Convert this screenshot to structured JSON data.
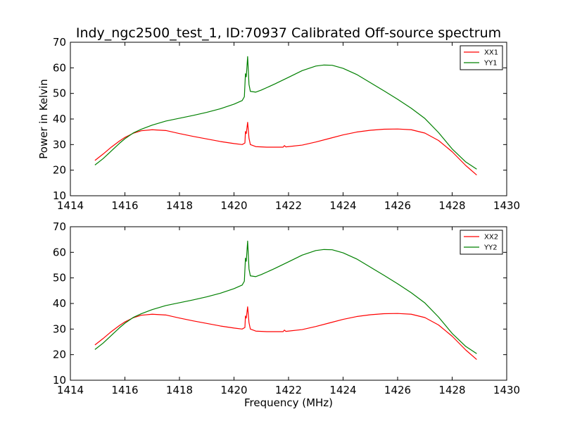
{
  "figure": {
    "title": "Indy_ngc2500_test_1, ID:70937 Calibrated Off-source spectrum"
  },
  "chart_data": [
    {
      "type": "line",
      "ylabel": "Power in Kelvin",
      "xlabel": "",
      "xlim": [
        1414,
        1430
      ],
      "ylim": [
        10,
        70
      ],
      "xticks": [
        "1414",
        "1416",
        "1418",
        "1420",
        "1422",
        "1424",
        "1426",
        "1428",
        "1430"
      ],
      "yticks": [
        "10",
        "20",
        "30",
        "40",
        "50",
        "60",
        "70"
      ],
      "legend": "top-right",
      "grid": false,
      "series": [
        {
          "name": "XX1",
          "color": "#ff0000",
          "points": [
            [
              1414.9,
              23.8
            ],
            [
              1415.2,
              26.3
            ],
            [
              1415.5,
              29.0
            ],
            [
              1415.8,
              31.4
            ],
            [
              1416.0,
              32.8
            ],
            [
              1416.3,
              34.4
            ],
            [
              1416.6,
              35.4
            ],
            [
              1417.0,
              35.8
            ],
            [
              1417.5,
              35.5
            ],
            [
              1418.0,
              34.3
            ],
            [
              1418.5,
              33.2
            ],
            [
              1419.0,
              32.2
            ],
            [
              1419.5,
              31.2
            ],
            [
              1420.0,
              30.4
            ],
            [
              1420.3,
              30.0
            ],
            [
              1420.4,
              30.6
            ],
            [
              1420.42,
              35.1
            ],
            [
              1420.45,
              34.3
            ],
            [
              1420.5,
              38.7
            ],
            [
              1420.55,
              32.5
            ],
            [
              1420.6,
              30.0
            ],
            [
              1420.8,
              29.2
            ],
            [
              1421.2,
              29.0
            ],
            [
              1421.8,
              29.0
            ],
            [
              1421.85,
              29.6
            ],
            [
              1421.9,
              29.1
            ],
            [
              1422.5,
              29.8
            ],
            [
              1423.0,
              31.0
            ],
            [
              1423.5,
              32.4
            ],
            [
              1424.0,
              33.8
            ],
            [
              1424.5,
              34.9
            ],
            [
              1425.0,
              35.6
            ],
            [
              1425.5,
              36.0
            ],
            [
              1426.0,
              36.1
            ],
            [
              1426.5,
              35.8
            ],
            [
              1427.0,
              34.5
            ],
            [
              1427.5,
              31.6
            ],
            [
              1428.0,
              27.2
            ],
            [
              1428.5,
              21.8
            ],
            [
              1428.9,
              18.1
            ]
          ]
        },
        {
          "name": "YY1",
          "color": "#008000",
          "points": [
            [
              1414.9,
              22.0
            ],
            [
              1415.2,
              24.5
            ],
            [
              1415.5,
              27.5
            ],
            [
              1415.8,
              30.5
            ],
            [
              1416.0,
              32.3
            ],
            [
              1416.3,
              34.5
            ],
            [
              1416.6,
              36.0
            ],
            [
              1417.0,
              37.6
            ],
            [
              1417.5,
              39.2
            ],
            [
              1418.0,
              40.3
            ],
            [
              1418.5,
              41.4
            ],
            [
              1419.0,
              42.6
            ],
            [
              1419.5,
              44.0
            ],
            [
              1420.0,
              45.8
            ],
            [
              1420.3,
              47.2
            ],
            [
              1420.38,
              48.7
            ],
            [
              1420.42,
              57.7
            ],
            [
              1420.45,
              56.5
            ],
            [
              1420.5,
              64.4
            ],
            [
              1420.55,
              53.5
            ],
            [
              1420.6,
              50.8
            ],
            [
              1420.8,
              50.5
            ],
            [
              1421.0,
              51.3
            ],
            [
              1421.5,
              53.7
            ],
            [
              1422.0,
              56.3
            ],
            [
              1422.5,
              58.9
            ],
            [
              1423.0,
              60.7
            ],
            [
              1423.3,
              61.1
            ],
            [
              1423.6,
              61.0
            ],
            [
              1424.0,
              59.8
            ],
            [
              1424.5,
              57.4
            ],
            [
              1425.0,
              54.2
            ],
            [
              1425.5,
              51.0
            ],
            [
              1426.0,
              47.7
            ],
            [
              1426.5,
              44.2
            ],
            [
              1427.0,
              40.2
            ],
            [
              1427.5,
              34.7
            ],
            [
              1428.0,
              28.3
            ],
            [
              1428.5,
              23.2
            ],
            [
              1428.9,
              20.4
            ]
          ]
        }
      ]
    },
    {
      "type": "line",
      "ylabel": "",
      "xlabel": "Frequency (MHz)",
      "xlim": [
        1414,
        1430
      ],
      "ylim": [
        10,
        70
      ],
      "xticks": [
        "1414",
        "1416",
        "1418",
        "1420",
        "1422",
        "1424",
        "1426",
        "1428",
        "1430"
      ],
      "yticks": [
        "10",
        "20",
        "30",
        "40",
        "50",
        "60",
        "70"
      ],
      "legend": "top-right",
      "grid": false,
      "series": [
        {
          "name": "XX2",
          "color": "#ff0000",
          "points": [
            [
              1414.9,
              23.8
            ],
            [
              1415.2,
              26.3
            ],
            [
              1415.5,
              29.0
            ],
            [
              1415.8,
              31.4
            ],
            [
              1416.0,
              32.8
            ],
            [
              1416.3,
              34.4
            ],
            [
              1416.6,
              35.4
            ],
            [
              1417.0,
              35.8
            ],
            [
              1417.5,
              35.5
            ],
            [
              1418.0,
              34.3
            ],
            [
              1418.5,
              33.2
            ],
            [
              1419.0,
              32.2
            ],
            [
              1419.5,
              31.2
            ],
            [
              1420.0,
              30.4
            ],
            [
              1420.3,
              30.0
            ],
            [
              1420.4,
              30.6
            ],
            [
              1420.42,
              35.1
            ],
            [
              1420.45,
              34.3
            ],
            [
              1420.5,
              38.7
            ],
            [
              1420.55,
              32.5
            ],
            [
              1420.6,
              30.0
            ],
            [
              1420.8,
              29.2
            ],
            [
              1421.2,
              29.0
            ],
            [
              1421.8,
              29.0
            ],
            [
              1421.85,
              29.6
            ],
            [
              1421.9,
              29.1
            ],
            [
              1422.5,
              29.8
            ],
            [
              1423.0,
              31.0
            ],
            [
              1423.5,
              32.4
            ],
            [
              1424.0,
              33.8
            ],
            [
              1424.5,
              34.9
            ],
            [
              1425.0,
              35.6
            ],
            [
              1425.5,
              36.0
            ],
            [
              1426.0,
              36.1
            ],
            [
              1426.5,
              35.8
            ],
            [
              1427.0,
              34.5
            ],
            [
              1427.5,
              31.6
            ],
            [
              1428.0,
              27.2
            ],
            [
              1428.5,
              21.8
            ],
            [
              1428.9,
              18.1
            ]
          ]
        },
        {
          "name": "YY2",
          "color": "#008000",
          "points": [
            [
              1414.9,
              22.0
            ],
            [
              1415.2,
              24.5
            ],
            [
              1415.5,
              27.5
            ],
            [
              1415.8,
              30.5
            ],
            [
              1416.0,
              32.3
            ],
            [
              1416.3,
              34.5
            ],
            [
              1416.6,
              36.0
            ],
            [
              1417.0,
              37.6
            ],
            [
              1417.5,
              39.2
            ],
            [
              1418.0,
              40.3
            ],
            [
              1418.5,
              41.4
            ],
            [
              1419.0,
              42.6
            ],
            [
              1419.5,
              44.0
            ],
            [
              1420.0,
              45.8
            ],
            [
              1420.3,
              47.2
            ],
            [
              1420.38,
              48.7
            ],
            [
              1420.42,
              57.7
            ],
            [
              1420.45,
              56.5
            ],
            [
              1420.5,
              64.4
            ],
            [
              1420.55,
              53.5
            ],
            [
              1420.6,
              50.8
            ],
            [
              1420.8,
              50.5
            ],
            [
              1421.0,
              51.3
            ],
            [
              1421.5,
              53.7
            ],
            [
              1422.0,
              56.3
            ],
            [
              1422.5,
              58.9
            ],
            [
              1423.0,
              60.7
            ],
            [
              1423.3,
              61.1
            ],
            [
              1423.6,
              61.0
            ],
            [
              1424.0,
              59.8
            ],
            [
              1424.5,
              57.4
            ],
            [
              1425.0,
              54.2
            ],
            [
              1425.5,
              51.0
            ],
            [
              1426.0,
              47.7
            ],
            [
              1426.5,
              44.2
            ],
            [
              1427.0,
              40.2
            ],
            [
              1427.5,
              34.7
            ],
            [
              1428.0,
              28.3
            ],
            [
              1428.5,
              23.2
            ],
            [
              1428.9,
              20.4
            ]
          ]
        }
      ]
    }
  ]
}
